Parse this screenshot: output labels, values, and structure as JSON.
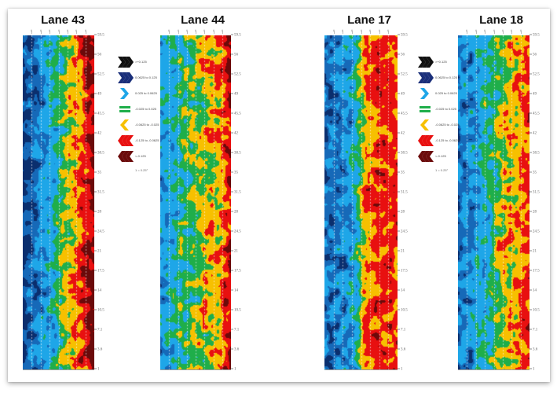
{
  "chart_data": {
    "type": "heatmap",
    "title": "",
    "panels": [
      {
        "title": "Lane 43",
        "profile": [
          0.95,
          0.85,
          0.7,
          0.5,
          0.25,
          0.05,
          -0.25,
          -0.45
        ]
      },
      {
        "title": "Lane 44",
        "profile": [
          0.7,
          0.55,
          0.35,
          0.3,
          0.15,
          0.05,
          -0.05,
          -0.35
        ]
      },
      {
        "title": "Lane 17",
        "profile": [
          0.85,
          0.75,
          0.7,
          0.5,
          -0.05,
          -0.2,
          -0.15,
          -0.15
        ]
      },
      {
        "title": "Lane 18",
        "profile": [
          0.75,
          0.7,
          0.55,
          0.45,
          0.2,
          0.05,
          -0.05,
          -0.15
        ]
      }
    ],
    "ylabel": "",
    "xlabel": "",
    "yticks": [
      "59.5",
      "56",
      "52.5",
      "49",
      "45.5",
      "42",
      "38.5",
      "35",
      "31.5",
      "28",
      "24.5",
      "21",
      "17.5",
      "14",
      "10.5",
      "7.1",
      "3.6",
      "1"
    ],
    "ylim": [
      1,
      59.5
    ],
    "x_columns": 8,
    "legend": [
      {
        "label": ">+0.125",
        "color": "#111111",
        "shape": "chevron-right-triple"
      },
      {
        "label": "0.0625 to 0.125",
        "color": "#1a2f7a",
        "shape": "chevron-right-triple"
      },
      {
        "label": "0.025 to 0.0625",
        "color": "#1ea6e8",
        "shape": "chevron-right"
      },
      {
        "label": "-0.025 to 0.025",
        "color": "#1fae4a",
        "shape": "equals"
      },
      {
        "label": "-0.0625 to -0.025",
        "color": "#f7c000",
        "shape": "chevron-left"
      },
      {
        "label": "-0.125 to -0.0625",
        "color": "#e81010",
        "shape": "chevron-left-triple"
      },
      {
        "label": "<-0.125",
        "color": "#6b0a0a",
        "shape": "chevron-left-triple"
      }
    ],
    "legend_note": "1 = 0.25°",
    "color_scale": [
      "#0b2f6e",
      "#1669b8",
      "#1ea6e8",
      "#1fae4a",
      "#f7c000",
      "#e81010",
      "#6b0a0a"
    ],
    "grid": "dashed vertical lines"
  },
  "lanes": [
    {
      "title": "Lane 43"
    },
    {
      "title": "Lane 44"
    },
    {
      "title": "Lane 17"
    },
    {
      "title": "Lane 18"
    }
  ],
  "legend_note": "1 = 0.25°"
}
